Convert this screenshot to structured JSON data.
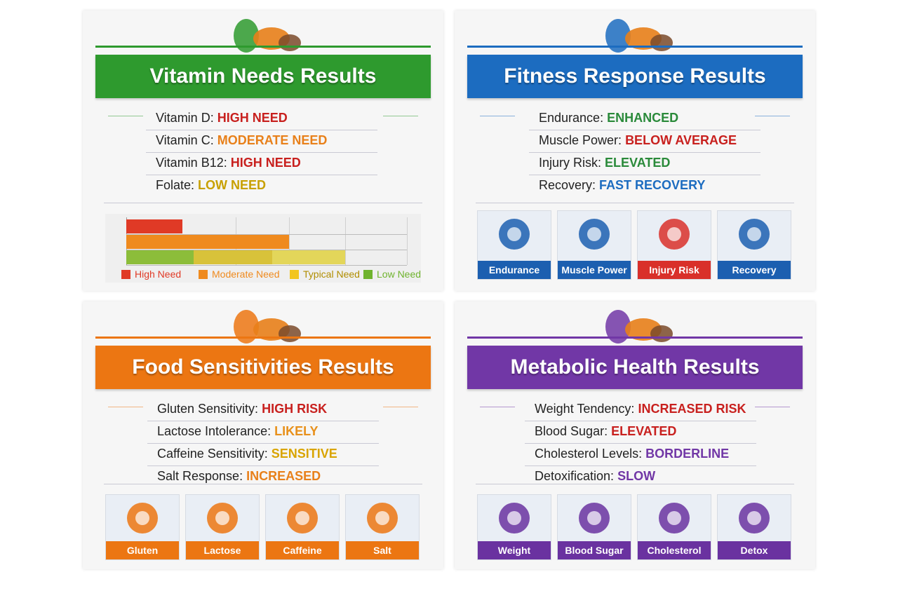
{
  "panels": [
    {
      "title": "Vitamin Needs Results",
      "color": "#2e9a2e",
      "items": [
        {
          "label": "Vitamin D:",
          "value": "HIGH NEED",
          "color": "#c8201e"
        },
        {
          "label": "Vitamin C:",
          "value": "MODERATE NEED",
          "color": "#e8801a"
        },
        {
          "label": "Vitamin B12:",
          "value": "HIGH NEED",
          "color": "#c8201e"
        },
        {
          "label": "Folate:",
          "value": "LOW NEED",
          "color": "#c8a000"
        }
      ],
      "chart": {
        "xlim": [
          0,
          100
        ],
        "gridlines": [
          0,
          39,
          58,
          78,
          100
        ],
        "rows": [
          [
            {
              "value": 20,
              "color": "#e03a26"
            }
          ],
          [
            {
              "value": 58,
              "color": "#ef8a1e"
            }
          ],
          [
            {
              "value": 24,
              "color": "#8cbd3a"
            },
            {
              "value": 28,
              "color": "#d8c23a"
            },
            {
              "value": 26,
              "color": "#e3d65a"
            }
          ]
        ],
        "legend": [
          {
            "name": "High Need",
            "color": "#e03a26"
          },
          {
            "name": "Moderate Need",
            "color": "#ef8a1e"
          },
          {
            "name": "Typical Need",
            "color": "#f2c51e"
          },
          {
            "name": "Low Need",
            "color": "#6fb32e"
          }
        ]
      }
    },
    {
      "title": "Fitness Response Results",
      "color": "#1c6cc0",
      "items": [
        {
          "label": "Endurance:",
          "value": "ENHANCED",
          "color": "#2a8a3a"
        },
        {
          "label": "Muscle Power:",
          "value": "BELOW AVERAGE",
          "color": "#c8201e"
        },
        {
          "label": "Injury Risk:",
          "value": "ELEVATED",
          "color": "#2a8a3a"
        },
        {
          "label": "Recovery:",
          "value": "FAST RECOVERY",
          "color": "#1c6cc0"
        }
      ],
      "tiles": [
        {
          "label": "Endurance",
          "color": "#1c5fb0"
        },
        {
          "label": "Muscle Power",
          "color": "#1c5fb0"
        },
        {
          "label": "Injury Risk",
          "color": "#d9302a"
        },
        {
          "label": "Recovery",
          "color": "#1c5fb0"
        }
      ]
    },
    {
      "title": "Food Sensitivities Results",
      "color": "#ec7612",
      "items": [
        {
          "label": "Gluten Sensitivity:",
          "value": "HIGH RISK",
          "color": "#c8201e"
        },
        {
          "label": "Lactose Intolerance:",
          "value": "LIKELY",
          "color": "#e8901a"
        },
        {
          "label": "Caffeine Sensitivity:",
          "value": "SENSITIVE",
          "color": "#d9a400"
        },
        {
          "label": "Salt Response:",
          "value": "INCREASED",
          "color": "#e8801a"
        }
      ],
      "tiles": [
        {
          "label": "Gluten",
          "color": "#ec7612"
        },
        {
          "label": "Lactose",
          "color": "#ec7612"
        },
        {
          "label": "Caffeine",
          "color": "#ec7612"
        },
        {
          "label": "Salt",
          "color": "#ec7612"
        }
      ]
    },
    {
      "title": "Metabolic Health Results",
      "color": "#7137a6",
      "items": [
        {
          "label": "Weight Tendency:",
          "value": "INCREASED RISK",
          "color": "#c8201e"
        },
        {
          "label": "Blood Sugar:",
          "value": "ELEVATED",
          "color": "#c8201e"
        },
        {
          "label": "Cholesterol Levels:",
          "value": "BORDERLINE",
          "color": "#7137a6"
        },
        {
          "label": "Detoxification:",
          "value": "SLOW",
          "color": "#7137a6"
        }
      ],
      "tiles": [
        {
          "label": "Weight",
          "color": "#6a32a0"
        },
        {
          "label": "Blood Sugar",
          "color": "#6a32a0"
        },
        {
          "label": "Cholesterol",
          "color": "#6a32a0"
        },
        {
          "label": "Detox",
          "color": "#6a32a0"
        }
      ]
    }
  ]
}
